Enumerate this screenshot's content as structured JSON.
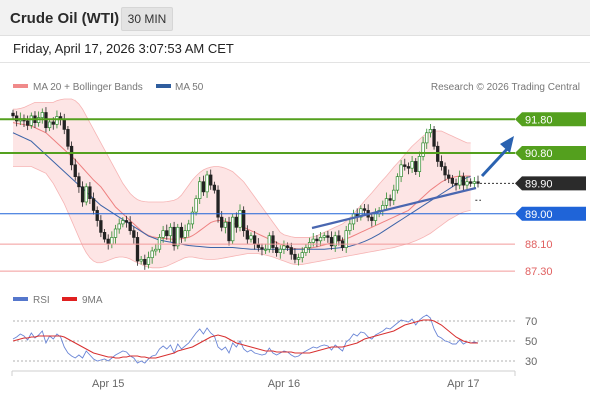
{
  "header": {
    "title": "Crude Oil (WTI)",
    "timeframe": "30 MIN"
  },
  "timestamp": "Friday, April 17, 2026 3:07:53 AM CET",
  "legend": [
    {
      "label": "MA 20 + Bollinger Bands",
      "color": "#f08a8a"
    },
    {
      "label": "MA 50",
      "color": "#2f5d9e"
    }
  ],
  "copyright": "Research © 2026 Trading Central",
  "colors": {
    "resistance": "#54a01e",
    "support": "#1f64d8",
    "minor_support": "#e06060",
    "last": "#2b2b2b",
    "candle_up": "#2e8b2e",
    "candle_down": "#222222",
    "band_fill": "#fde5e5",
    "arrow": "#2a62b0"
  },
  "chart_data": {
    "type": "candlestick",
    "price_axis": {
      "ylim": [
        86.95,
        92.4
      ]
    },
    "x_ticks": [
      {
        "label": "Apr 15",
        "bar": 26
      },
      {
        "label": "Apr 16",
        "bar": 74
      },
      {
        "label": "Apr 17",
        "bar": 123
      }
    ],
    "levels": [
      {
        "value": 91.8,
        "label": "91.80",
        "kind": "resistance"
      },
      {
        "value": 90.8,
        "label": "90.80",
        "kind": "resistance"
      },
      {
        "value": 89.9,
        "label": "89.90",
        "kind": "last"
      },
      {
        "value": 89.0,
        "label": "89.00",
        "kind": "support"
      },
      {
        "value": 88.1,
        "label": "88.10",
        "kind": "minor_support"
      },
      {
        "value": 87.3,
        "label": "87.30",
        "kind": "minor_support"
      }
    ],
    "close": [
      91.9,
      91.75,
      91.82,
      91.75,
      91.62,
      91.9,
      91.7,
      91.85,
      92.0,
      91.55,
      91.72,
      91.65,
      91.88,
      91.8,
      91.5,
      91.0,
      90.45,
      90.1,
      89.8,
      89.35,
      89.8,
      89.45,
      89.1,
      88.8,
      88.45,
      88.25,
      88.1,
      88.3,
      88.55,
      88.7,
      88.8,
      88.75,
      88.5,
      88.3,
      87.6,
      87.65,
      87.5,
      87.7,
      87.9,
      87.95,
      88.3,
      88.5,
      88.35,
      88.6,
      88.05,
      88.6,
      88.3,
      88.5,
      88.7,
      89.05,
      89.45,
      89.95,
      89.65,
      90.15,
      89.85,
      89.7,
      88.9,
      88.6,
      88.75,
      88.2,
      88.9,
      88.6,
      89.1,
      88.5,
      88.25,
      88.35,
      88.1,
      88.0,
      87.95,
      87.95,
      88.35,
      88.0,
      87.85,
      87.95,
      88.05,
      88.0,
      87.8,
      87.65,
      87.7,
      87.85,
      88.0,
      88.15,
      88.25,
      88.2,
      88.3,
      88.35,
      88.3,
      88.05,
      88.35,
      88.2,
      88.0,
      88.5,
      88.7,
      89.0,
      88.9,
      89.15,
      89.1,
      88.9,
      88.8,
      89.0,
      89.1,
      89.25,
      89.45,
      89.4,
      89.7,
      90.1,
      90.45,
      90.4,
      90.35,
      90.55,
      90.25,
      90.7,
      91.1,
      91.4,
      91.5,
      91.0,
      90.55,
      90.4,
      90.15,
      90.05,
      89.9,
      89.85,
      90.1,
      89.85,
      89.95,
      89.9,
      89.95,
      89.9
    ],
    "ma50": [
      91.4,
      91.35,
      91.3,
      91.25,
      91.2,
      91.15,
      91.05,
      90.95,
      90.85,
      90.75,
      90.65,
      90.55,
      90.45,
      90.35,
      90.25,
      90.15,
      90.05,
      89.95,
      89.85,
      89.75,
      89.65,
      89.55,
      89.45,
      89.35,
      89.25,
      89.18,
      89.11,
      89.04,
      88.97,
      88.9,
      88.83,
      88.76,
      88.69,
      88.62,
      88.55,
      88.48,
      88.41,
      88.34,
      88.3,
      88.26,
      88.22,
      88.2,
      88.18,
      88.16,
      88.14,
      88.12,
      88.1,
      88.08,
      88.06,
      88.05,
      88.04,
      88.03,
      88.02,
      88.01,
      88.0,
      88.0,
      88.0,
      88.0,
      88.0,
      88.0,
      88.0,
      87.99,
      87.98,
      87.97,
      87.96,
      87.95,
      87.95,
      87.95,
      87.95,
      87.95,
      87.95,
      87.95,
      87.95,
      87.95,
      87.95,
      87.95,
      87.95,
      87.95,
      87.95,
      87.95,
      87.95,
      87.95,
      87.95,
      87.95,
      87.95,
      87.95,
      87.96,
      87.97,
      87.98,
      87.99,
      88.0,
      88.02,
      88.04,
      88.07,
      88.1,
      88.14,
      88.18,
      88.23,
      88.28,
      88.34,
      88.4,
      88.47,
      88.54,
      88.61,
      88.68,
      88.75,
      88.82,
      88.89,
      88.96,
      89.03,
      89.1,
      89.17,
      89.24,
      89.31,
      89.38,
      89.45,
      89.52,
      89.59,
      89.66,
      89.73,
      89.8,
      89.87,
      89.94,
      90.01,
      90.08,
      90.1
    ],
    "ma20_bollinger": {
      "ma": [
        91.7,
        91.68,
        91.66,
        91.64,
        91.62,
        91.6,
        91.55,
        91.5,
        91.45,
        91.4,
        91.3,
        91.2,
        91.1,
        91.0,
        90.9,
        90.8,
        90.7,
        90.6,
        90.48,
        90.36,
        90.24,
        90.12,
        90.0,
        89.9,
        89.8,
        89.65,
        89.5,
        89.35,
        89.2,
        89.1,
        89.0,
        88.9,
        88.8,
        88.7,
        88.6,
        88.5,
        88.42,
        88.36,
        88.32,
        88.3,
        88.28,
        88.27,
        88.26,
        88.25,
        88.25,
        88.25,
        88.26,
        88.28,
        88.3,
        88.35,
        88.42,
        88.5,
        88.58,
        88.66,
        88.74,
        88.78,
        88.8,
        88.8,
        88.78,
        88.75,
        88.72,
        88.68,
        88.64,
        88.6,
        88.55,
        88.5,
        88.45,
        88.4,
        88.35,
        88.3,
        88.25,
        88.2,
        88.15,
        88.1,
        88.06,
        88.02,
        87.99,
        87.97,
        87.96,
        87.96,
        87.97,
        87.98,
        88.0,
        88.02,
        88.05,
        88.08,
        88.11,
        88.14,
        88.17,
        88.2,
        88.23,
        88.26,
        88.3,
        88.35,
        88.4,
        88.45,
        88.5,
        88.55,
        88.6,
        88.65,
        88.7,
        88.75,
        88.8,
        88.85,
        88.9,
        88.95,
        89.0,
        89.05,
        89.1,
        89.2,
        89.3,
        89.4,
        89.5,
        89.6,
        89.7,
        89.78,
        89.86,
        89.94,
        90.0,
        90.05,
        90.08,
        90.1,
        90.12,
        90.12,
        90.12,
        90.12
      ],
      "upper": [
        92.1,
        92.1,
        92.12,
        92.15,
        92.2,
        92.25,
        92.3,
        92.3,
        92.3,
        92.3,
        92.3,
        92.3,
        92.35,
        92.38,
        92.4,
        92.4,
        92.4,
        92.35,
        92.25,
        92.1,
        91.9,
        91.7,
        91.5,
        91.3,
        91.1,
        90.9,
        90.7,
        90.5,
        90.3,
        90.1,
        89.9,
        89.75,
        89.6,
        89.5,
        89.42,
        89.38,
        89.36,
        89.35,
        89.35,
        89.35,
        89.35,
        89.35,
        89.36,
        89.38,
        89.4,
        89.45,
        89.55,
        89.7,
        89.85,
        90.0,
        90.12,
        90.22,
        90.3,
        90.35,
        90.38,
        90.4,
        90.4,
        90.38,
        90.35,
        90.3,
        90.25,
        90.15,
        90.05,
        89.95,
        89.8,
        89.65,
        89.5,
        89.35,
        89.2,
        89.05,
        88.9,
        88.75,
        88.6,
        88.45,
        88.38,
        88.35,
        88.32,
        88.3,
        88.3,
        88.3,
        88.3,
        88.3,
        88.32,
        88.35,
        88.4,
        88.45,
        88.5,
        88.55,
        88.6,
        88.65,
        88.7,
        88.78,
        88.88,
        89.0,
        89.12,
        89.25,
        89.38,
        89.5,
        89.62,
        89.75,
        89.88,
        90.0,
        90.12,
        90.25,
        90.38,
        90.5,
        90.62,
        90.75,
        90.88,
        91.0,
        91.1,
        91.2,
        91.3,
        91.38,
        91.42,
        91.45,
        91.45,
        91.45,
        91.4,
        91.35,
        91.3,
        91.25,
        91.2,
        91.15,
        91.1,
        91.1
      ],
      "lower": [
        90.4,
        90.4,
        90.4,
        90.4,
        90.4,
        90.4,
        90.35,
        90.3,
        90.25,
        90.2,
        90.05,
        89.9,
        89.7,
        89.5,
        89.3,
        89.05,
        88.8,
        88.55,
        88.3,
        88.05,
        87.85,
        87.7,
        87.6,
        87.55,
        87.55,
        87.58,
        87.62,
        87.66,
        87.7,
        87.72,
        87.72,
        87.7,
        87.66,
        87.6,
        87.55,
        87.5,
        87.45,
        87.42,
        87.4,
        87.4,
        87.4,
        87.42,
        87.45,
        87.5,
        87.55,
        87.6,
        87.65,
        87.7,
        87.72,
        87.72,
        87.7,
        87.68,
        87.66,
        87.65,
        87.65,
        87.65,
        87.66,
        87.68,
        87.7,
        87.72,
        87.74,
        87.76,
        87.78,
        87.8,
        87.82,
        87.82,
        87.82,
        87.82,
        87.8,
        87.78,
        87.75,
        87.72,
        87.68,
        87.64,
        87.6,
        87.56,
        87.52,
        87.5,
        87.5,
        87.5,
        87.52,
        87.54,
        87.56,
        87.58,
        87.6,
        87.62,
        87.64,
        87.66,
        87.68,
        87.7,
        87.72,
        87.74,
        87.76,
        87.78,
        87.8,
        87.82,
        87.84,
        87.86,
        87.88,
        87.9,
        87.92,
        87.94,
        87.96,
        87.98,
        88.0,
        88.03,
        88.06,
        88.09,
        88.12,
        88.16,
        88.2,
        88.25,
        88.3,
        88.36,
        88.42,
        88.5,
        88.58,
        88.66,
        88.74,
        88.82,
        88.88,
        88.94,
        89.0,
        89.05,
        89.08,
        89.1
      ]
    },
    "rsi_panel": {
      "legend": [
        "RSI",
        "9MA"
      ],
      "ticks": [
        30,
        50,
        70
      ],
      "rsi": [
        52,
        54,
        57,
        55,
        51,
        58,
        53,
        56,
        60,
        48,
        55,
        52,
        57,
        54,
        44,
        38,
        35,
        33,
        36,
        33,
        40,
        36,
        32,
        30,
        31,
        32,
        30,
        33,
        36,
        38,
        40,
        39,
        35,
        33,
        28,
        30,
        28,
        32,
        35,
        36,
        42,
        45,
        42,
        46,
        38,
        47,
        42,
        45,
        48,
        53,
        58,
        62,
        57,
        63,
        58,
        55,
        44,
        41,
        44,
        38,
        48,
        44,
        50,
        42,
        39,
        41,
        38,
        37,
        36,
        37,
        43,
        38,
        36,
        38,
        40,
        39,
        36,
        34,
        35,
        38,
        40,
        42,
        44,
        43,
        45,
        46,
        45,
        41,
        46,
        43,
        40,
        49,
        52,
        57,
        55,
        59,
        58,
        54,
        52,
        56,
        58,
        60,
        63,
        62,
        65,
        68,
        71,
        70,
        69,
        72,
        66,
        71,
        74,
        76,
        73,
        62,
        55,
        53,
        50,
        49,
        47,
        47,
        51,
        47,
        49,
        48,
        49,
        48
      ],
      "ma9": [
        50,
        51,
        52,
        53,
        53,
        54,
        54,
        55,
        55,
        55,
        55,
        55,
        55,
        55,
        54,
        52,
        50,
        48,
        46,
        44,
        42,
        40,
        38,
        37,
        36,
        35,
        34,
        34,
        33,
        33,
        34,
        34,
        35,
        35,
        35,
        34,
        34,
        33,
        33,
        33,
        34,
        35,
        36,
        37,
        38,
        40,
        41,
        42,
        43,
        44,
        46,
        48,
        50,
        52,
        54,
        55,
        56,
        55,
        54,
        52,
        50,
        48,
        47,
        46,
        45,
        44,
        43,
        42,
        41,
        40,
        40,
        40,
        39,
        39,
        39,
        39,
        39,
        38,
        38,
        38,
        38,
        38,
        39,
        40,
        41,
        42,
        43,
        44,
        44,
        44,
        44,
        45,
        46,
        47,
        48,
        50,
        52,
        53,
        54,
        55,
        56,
        57,
        58,
        59,
        60,
        62,
        64,
        66,
        67,
        68,
        69,
        70,
        71,
        71,
        71,
        70,
        68,
        66,
        63,
        60,
        57,
        54,
        52,
        50,
        49,
        48,
        48,
        48
      ]
    }
  }
}
